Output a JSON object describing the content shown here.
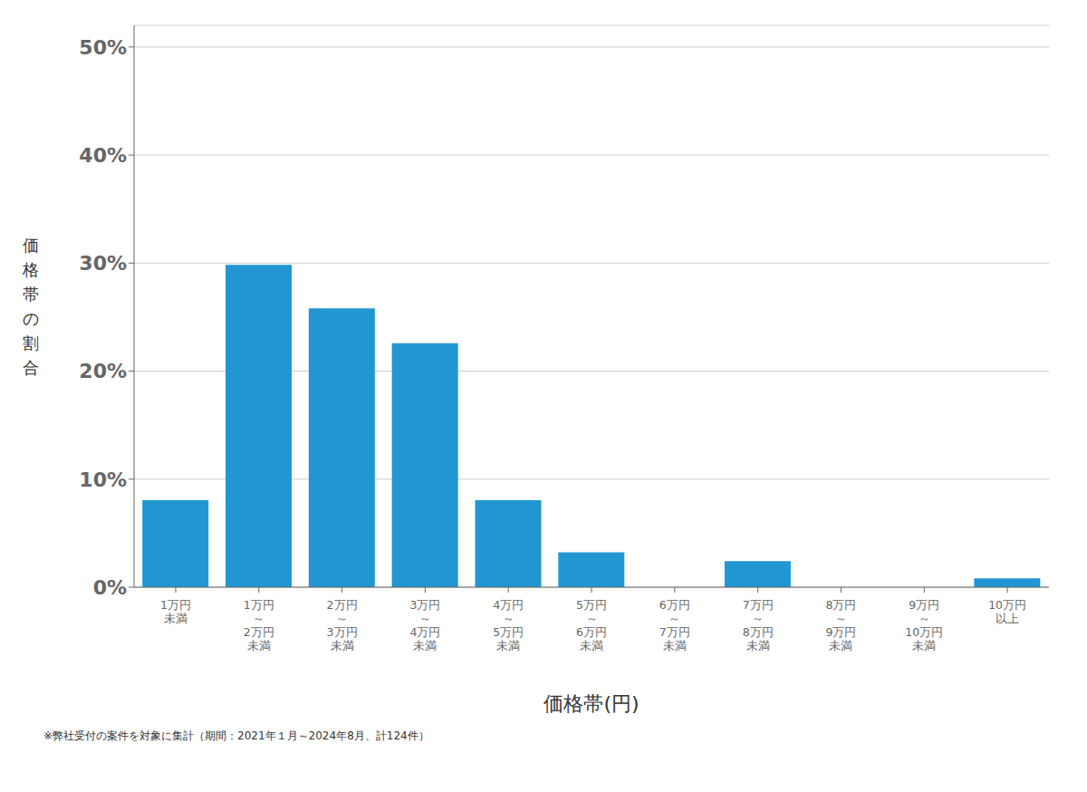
{
  "chart_data": {
    "type": "bar",
    "categories": [
      "1万円\n未満",
      "1万円\n～\n2万円\n未満",
      "2万円\n～\n3万円\n未満",
      "3万円\n～\n4万円\n未満",
      "4万円\n～\n5万円\n未満",
      "5万円\n～\n6万円\n未満",
      "6万円\n～\n7万円\n未満",
      "7万円\n～\n8万円\n未満",
      "8万円\n～\n9万円\n未満",
      "9万円\n～\n10万円\n未満",
      "10万円\n以上"
    ],
    "values": [
      8.06,
      29.84,
      25.81,
      22.58,
      8.06,
      3.23,
      0.0,
      2.42,
      0.0,
      0.0,
      0.81
    ],
    "color": "#2196d3",
    "ylabel": "価\n格\n帯\nの\n割\n合",
    "xlabel": "価格帯(円)",
    "annotations": [
      "※弊社受付の案件を対象に集計（期間：2021年１月～2024年8月、計124件）"
    ],
    "ylim": [
      0,
      52
    ],
    "yticks": [
      {
        "value": 0,
        "label": "0%"
      },
      {
        "value": 10,
        "label": "10%"
      },
      {
        "value": 20,
        "label": "20%"
      },
      {
        "value": 30,
        "label": "30%"
      },
      {
        "value": 40,
        "label": "40%"
      },
      {
        "value": 50,
        "label": "50%"
      }
    ],
    "grid": true
  }
}
